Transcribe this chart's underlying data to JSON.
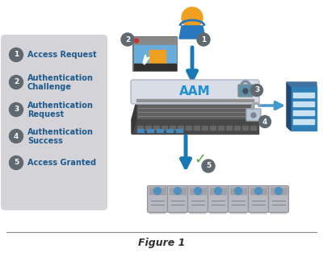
{
  "figure_label": "Figure 1",
  "background_color": "#ffffff",
  "legend_bg": "#d4d4d8",
  "arrow_color": "#1878b4",
  "arrow_color_thin": "#4499cc",
  "circle_fc": "#606870",
  "circle_tc": "#ffffff",
  "label_color": "#1e5a8c",
  "legend_items": [
    {
      "num": "1",
      "lines": [
        "Access Request"
      ]
    },
    {
      "num": "2",
      "lines": [
        "Authentication",
        "Challenge"
      ]
    },
    {
      "num": "3",
      "lines": [
        "Authentication",
        "Request"
      ]
    },
    {
      "num": "4",
      "lines": [
        "Authentication",
        "Success"
      ]
    },
    {
      "num": "5",
      "lines": [
        "Access Granted"
      ]
    }
  ],
  "person_head_color": "#f0a020",
  "person_body_color": "#2878c0",
  "aam_label_color": "#2090d0",
  "aam_top_fc": "#d8dde8",
  "chassis_dark": "#484848",
  "chassis_mid": "#606060",
  "chassis_light": "#888888",
  "check_color": "#50aa40",
  "server_body": "#b8b8c0",
  "server_light": "#5090c0",
  "bld_color": "#3080b8",
  "bld_window": "#c8e4f4",
  "bld_dark": "#204060"
}
